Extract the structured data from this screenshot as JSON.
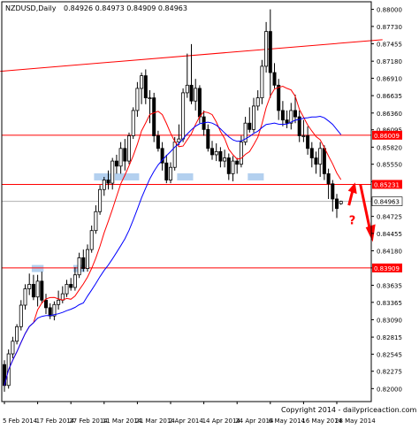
{
  "header": {
    "symbol_label": "NZDUSD,Daily",
    "ohlc_label": "0.84926 0.84973 0.84909 0.84963"
  },
  "copyright": "Copyright 2014 - dailypriceaction.com",
  "colors": {
    "background": "#ffffff",
    "candle": "#000000",
    "ma_fast": "#ff0000",
    "ma_slow": "#0000ff",
    "levels": "#ff0000",
    "highlight": "#a6c8ec",
    "axis_text": "#000000"
  },
  "chart_data": {
    "type": "candlestick",
    "symbol": "NZDUSD",
    "timeframe": "Daily",
    "ylim": [
      0.81795,
      0.8812
    ],
    "y_ticks": [
      "0.88000",
      "0.87730",
      "0.87455",
      "0.87180",
      "0.86910",
      "0.86635",
      "0.86360",
      "0.86095",
      "0.85820",
      "0.85550",
      "0.85275",
      "0.85000",
      "0.84725",
      "0.84455",
      "0.84180",
      "0.83910",
      "0.83635",
      "0.83365",
      "0.83090",
      "0.82815",
      "0.82545",
      "0.82275",
      "0.82000"
    ],
    "x_labels": [
      "5 Feb 2014",
      "17 Feb 2014",
      "27 Feb 2014",
      "11 Mar 2014",
      "21 Mar 2014",
      "2 Apr 2014",
      "14 Apr 2014",
      "24 Apr 2014",
      "6 May 2014",
      "16 May 2014",
      "28 May 2014"
    ],
    "x_label_bar_index": [
      0,
      8,
      16,
      24,
      32,
      40,
      48,
      56,
      64,
      72,
      80
    ],
    "current_price": {
      "label": "0.84963",
      "value": 0.84963
    },
    "horizontal_levels": [
      {
        "value": 0.86009,
        "label": "0.86009"
      },
      {
        "value": 0.85231,
        "label": "0.85231"
      },
      {
        "value": 0.83909,
        "label": "0.83909"
      }
    ],
    "trendline": {
      "start": {
        "bar": -1,
        "value": 0.8702
      },
      "end": {
        "bar": 91,
        "value": 0.8752
      }
    },
    "annotation": {
      "text": "?"
    },
    "candles": {
      "open": [
        0.8238,
        0.8205,
        0.8255,
        0.8275,
        0.8298,
        0.8332,
        0.8358,
        0.8365,
        0.8345,
        0.837,
        0.834,
        0.8328,
        0.8315,
        0.8333,
        0.834,
        0.835,
        0.8365,
        0.836,
        0.838,
        0.8407,
        0.839,
        0.842,
        0.845,
        0.848,
        0.8515,
        0.853,
        0.8525,
        0.856,
        0.8552,
        0.858,
        0.856,
        0.86,
        0.864,
        0.8675,
        0.8695,
        0.866,
        0.866,
        0.86,
        0.858,
        0.8557,
        0.853,
        0.855,
        0.859,
        0.8595,
        0.8668,
        0.868,
        0.8655,
        0.8675,
        0.863,
        0.861,
        0.858,
        0.857,
        0.8575,
        0.856,
        0.8565,
        0.854,
        0.856,
        0.8555,
        0.859,
        0.862,
        0.861,
        0.8647,
        0.866,
        0.871,
        0.8765,
        0.87,
        0.868,
        0.864,
        0.8625,
        0.862,
        0.864,
        0.863,
        0.86,
        0.86,
        0.858,
        0.8565,
        0.8555,
        0.858,
        0.854,
        0.8524,
        0.85,
        0.84926
      ],
      "high": [
        0.8245,
        0.8262,
        0.8282,
        0.8302,
        0.834,
        0.8365,
        0.8382,
        0.838,
        0.838,
        0.8385,
        0.835,
        0.8335,
        0.8338,
        0.8355,
        0.8362,
        0.8372,
        0.8375,
        0.8392,
        0.8415,
        0.842,
        0.8428,
        0.8458,
        0.849,
        0.8522,
        0.8535,
        0.8545,
        0.8565,
        0.857,
        0.859,
        0.8595,
        0.8605,
        0.8645,
        0.8685,
        0.87,
        0.8705,
        0.8672,
        0.8668,
        0.8608,
        0.859,
        0.857,
        0.8558,
        0.8598,
        0.8618,
        0.8675,
        0.873,
        0.8745,
        0.869,
        0.868,
        0.864,
        0.8618,
        0.8592,
        0.8588,
        0.8582,
        0.8578,
        0.8572,
        0.8568,
        0.8565,
        0.86,
        0.863,
        0.8645,
        0.866,
        0.8672,
        0.872,
        0.878,
        0.88,
        0.8715,
        0.869,
        0.8655,
        0.864,
        0.8652,
        0.8665,
        0.864,
        0.8625,
        0.8615,
        0.859,
        0.8575,
        0.859,
        0.8585,
        0.8548,
        0.853,
        0.8508,
        0.84973
      ],
      "low": [
        0.8195,
        0.82,
        0.8248,
        0.827,
        0.8292,
        0.8325,
        0.8348,
        0.834,
        0.833,
        0.8335,
        0.8318,
        0.831,
        0.8308,
        0.8325,
        0.8335,
        0.8345,
        0.8355,
        0.8355,
        0.8375,
        0.8385,
        0.8385,
        0.8415,
        0.8445,
        0.8475,
        0.8505,
        0.8515,
        0.8515,
        0.854,
        0.854,
        0.8545,
        0.8555,
        0.8595,
        0.863,
        0.865,
        0.865,
        0.862,
        0.859,
        0.8575,
        0.8545,
        0.8525,
        0.8525,
        0.8545,
        0.8585,
        0.859,
        0.866,
        0.865,
        0.864,
        0.862,
        0.86,
        0.8575,
        0.8562,
        0.856,
        0.855,
        0.855,
        0.853,
        0.8528,
        0.854,
        0.855,
        0.8585,
        0.8605,
        0.8605,
        0.864,
        0.865,
        0.87,
        0.866,
        0.8675,
        0.8625,
        0.8615,
        0.8612,
        0.861,
        0.862,
        0.859,
        0.859,
        0.857,
        0.855,
        0.854,
        0.8535,
        0.853,
        0.85,
        0.848,
        0.847,
        0.84909
      ],
      "close": [
        0.8205,
        0.8255,
        0.8275,
        0.8298,
        0.8332,
        0.8358,
        0.8365,
        0.8345,
        0.837,
        0.834,
        0.8328,
        0.8315,
        0.8333,
        0.834,
        0.835,
        0.8365,
        0.836,
        0.838,
        0.8407,
        0.839,
        0.842,
        0.845,
        0.848,
        0.8515,
        0.853,
        0.8525,
        0.856,
        0.8552,
        0.858,
        0.856,
        0.86,
        0.864,
        0.8675,
        0.8695,
        0.866,
        0.866,
        0.86,
        0.858,
        0.8557,
        0.853,
        0.855,
        0.859,
        0.8595,
        0.8668,
        0.868,
        0.8655,
        0.8675,
        0.863,
        0.861,
        0.858,
        0.857,
        0.8575,
        0.856,
        0.8565,
        0.854,
        0.856,
        0.8555,
        0.859,
        0.862,
        0.861,
        0.8647,
        0.866,
        0.871,
        0.8765,
        0.87,
        0.868,
        0.864,
        0.8625,
        0.862,
        0.864,
        0.863,
        0.86,
        0.86,
        0.858,
        0.8565,
        0.8555,
        0.858,
        0.854,
        0.8524,
        0.85,
        0.8485,
        0.84963
      ]
    },
    "series": [
      {
        "kind": "moving-average",
        "color": "#ff0000",
        "period": 8
      },
      {
        "kind": "moving-average",
        "color": "#0000ff",
        "period": 20
      }
    ]
  }
}
